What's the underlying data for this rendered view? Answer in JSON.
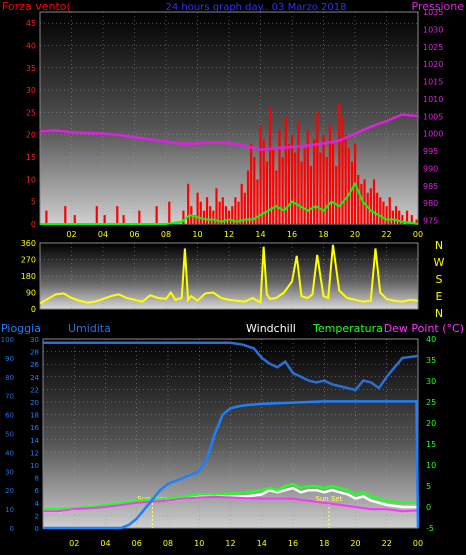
{
  "colors": {
    "wind": "#ff0000",
    "gust_line": "#00ff00",
    "pressure": "#e020e0",
    "title": "#3030ff",
    "direction": "#ffff00",
    "rain": "#1e7fff",
    "humidity": "#2a6fd8",
    "windchill": "#ffffff",
    "temperature": "#22ff22",
    "dewpoint": "#ff33ff",
    "sun": "#ffff66",
    "axis_text": "#ffff00"
  },
  "chart_data": [
    {
      "type": "bar",
      "title": "24 hours graph day.. 03 Marzo 2018",
      "left_label": "Forza vento(",
      "right_label": "Pressione",
      "x_ticks": [
        "02",
        "04",
        "06",
        "08",
        "10",
        "12",
        "14",
        "16",
        "18",
        "20",
        "22",
        "00"
      ],
      "x_range": [
        0,
        24
      ],
      "y_left": {
        "ticks": [
          "0",
          "5",
          "10",
          "15",
          "20",
          "25",
          "30",
          "35",
          "40",
          "45"
        ],
        "range": [
          0,
          47.5
        ]
      },
      "y_right": {
        "ticks": [
          "975",
          "980",
          "985",
          "990",
          "995",
          "1000",
          "1005",
          "1010",
          "1015",
          "1020",
          "1025",
          "1030",
          "1035"
        ],
        "range": [
          974,
          1035
        ]
      },
      "series": [
        {
          "key": "wind_speed",
          "x": [
            0.4,
            0.9,
            1.6,
            2.2,
            3.0,
            3.6,
            4.1,
            4.5,
            4.9,
            5.3,
            5.7,
            6.3,
            6.9,
            7.4,
            8.2,
            8.7,
            9.1,
            9.4,
            9.6,
            9.8,
            10.0,
            10.2,
            10.4,
            10.6,
            10.8,
            11.0,
            11.2,
            11.4,
            11.6,
            11.8,
            12.0,
            12.2,
            12.4,
            12.6,
            12.8,
            13.0,
            13.2,
            13.4,
            13.6,
            13.8,
            14.0,
            14.2,
            14.4,
            14.6,
            14.8,
            15.0,
            15.2,
            15.4,
            15.6,
            15.8,
            16.0,
            16.2,
            16.4,
            16.6,
            16.8,
            17.0,
            17.2,
            17.4,
            17.6,
            17.8,
            18.0,
            18.2,
            18.4,
            18.6,
            18.8,
            19.0,
            19.2,
            19.4,
            19.6,
            19.8,
            20.0,
            20.2,
            20.4,
            20.6,
            20.8,
            21.0,
            21.2,
            21.4,
            21.6,
            21.8,
            22.0,
            22.2,
            22.4,
            22.6,
            22.8,
            23.0,
            23.3,
            23.6,
            23.9
          ],
          "values": [
            3,
            0,
            4,
            2,
            0,
            4,
            2,
            0,
            4,
            2,
            0,
            3,
            0,
            4,
            5,
            0,
            3,
            9,
            4,
            2,
            7,
            5,
            3,
            6,
            4,
            3,
            8,
            5,
            6,
            4,
            3,
            4,
            6,
            5,
            9,
            7,
            12,
            18,
            15,
            10,
            22,
            19,
            14,
            26,
            17,
            12,
            21,
            15,
            24,
            18,
            20,
            16,
            23,
            14,
            17,
            21,
            13,
            19,
            25,
            16,
            20,
            15,
            22,
            18,
            13,
            27,
            24,
            20,
            17,
            14,
            18,
            11,
            9,
            10,
            7,
            8,
            10,
            7,
            6,
            5,
            4,
            6,
            3,
            4,
            3,
            2,
            3,
            2,
            1
          ]
        },
        {
          "key": "wind_gust_line",
          "x": [
            0,
            1,
            2,
            3,
            4,
            5,
            6,
            7,
            8,
            9,
            9.5,
            10,
            10.5,
            11,
            11.5,
            12,
            12.5,
            13,
            13.5,
            14,
            14.5,
            15,
            15.5,
            16,
            16.5,
            17,
            17.5,
            18,
            18.5,
            19,
            19.5,
            20,
            20.5,
            21,
            21.5,
            22,
            22.5,
            23,
            24
          ],
          "values": [
            0,
            0,
            0,
            0,
            0,
            0,
            0,
            0,
            0,
            0.5,
            2,
            1.5,
            1,
            1,
            0.5,
            1,
            0.5,
            1,
            1,
            2,
            3,
            4,
            3,
            5,
            4,
            3,
            4,
            3,
            5,
            4,
            6,
            9,
            5,
            3,
            2,
            1,
            1,
            0.5,
            0
          ]
        },
        {
          "key": "pressure",
          "x": [
            0,
            1,
            2,
            3,
            4,
            5,
            6,
            7,
            8,
            9,
            10,
            11,
            12,
            13,
            14,
            15,
            16,
            17,
            18,
            19,
            20,
            21,
            22,
            23,
            24
          ],
          "values": [
            1000.6,
            1000.9,
            1000.4,
            1000.2,
            1000.0,
            999.6,
            999.0,
            998.3,
            997.7,
            997.1,
            997.2,
            997.5,
            997.3,
            996.5,
            995.4,
            995.8,
            996.2,
            996.6,
            997.2,
            998.0,
            1000.0,
            1002.0,
            1003.6,
            1005.5,
            1005.0
          ]
        }
      ]
    },
    {
      "type": "line",
      "x_ticks": [
        "02",
        "04",
        "06",
        "08",
        "10",
        "12",
        "14",
        "16",
        "18",
        "20",
        "22",
        "00"
      ],
      "x_range": [
        0,
        24
      ],
      "y_left": {
        "ticks": [
          "0",
          "90",
          "180",
          "270",
          "360"
        ],
        "range": [
          0,
          360
        ]
      },
      "right_labels": [
        "N",
        "W",
        "S",
        "E",
        "N"
      ],
      "series": [
        {
          "key": "wind_direction",
          "x": [
            0,
            0.5,
            1,
            1.5,
            2,
            2.5,
            3,
            3.5,
            4,
            4.5,
            5,
            5.5,
            6,
            6.5,
            7,
            7.5,
            8,
            8.3,
            8.6,
            9,
            9.2,
            9.4,
            9.6,
            10,
            10.5,
            11,
            11.5,
            12,
            12.5,
            13,
            13.5,
            14,
            14.2,
            14.4,
            14.6,
            15,
            15.5,
            16,
            16.3,
            16.6,
            17,
            17.3,
            17.6,
            18,
            18.3,
            18.6,
            19,
            19.5,
            20,
            20.5,
            21,
            21.3,
            21.6,
            22,
            22.5,
            23,
            23.5,
            24
          ],
          "values": [
            30,
            55,
            80,
            85,
            60,
            45,
            35,
            40,
            55,
            70,
            80,
            60,
            50,
            40,
            75,
            60,
            55,
            90,
            50,
            60,
            330,
            50,
            70,
            45,
            85,
            90,
            60,
            50,
            45,
            40,
            60,
            35,
            340,
            80,
            55,
            60,
            90,
            150,
            290,
            70,
            60,
            80,
            295,
            70,
            60,
            350,
            100,
            60,
            50,
            40,
            45,
            330,
            90,
            55,
            45,
            40,
            50,
            45
          ]
        }
      ]
    },
    {
      "type": "line",
      "x_ticks": [
        "02",
        "04",
        "06",
        "08",
        "10",
        "12",
        "14",
        "16",
        "18",
        "20",
        "22",
        "00"
      ],
      "x_range": [
        0,
        24
      ],
      "labels": [
        "Pioggia",
        "Umidita",
        "Windchill",
        "Temperatura",
        "Dew Point (°C)"
      ],
      "y_rain": {
        "ticks": [
          "0",
          "2",
          "4",
          "6",
          "8",
          "10",
          "12",
          "14",
          "16",
          "18",
          "20",
          "22",
          "24",
          "26",
          "28",
          "30"
        ],
        "range": [
          0,
          30
        ]
      },
      "y_humidity": {
        "ticks": [
          "0",
          "10",
          "20",
          "30",
          "40",
          "50",
          "60",
          "70",
          "80",
          "90",
          "100"
        ],
        "range": [
          0,
          100
        ]
      },
      "y_temp": {
        "ticks": [
          "-5",
          "0",
          "5",
          "10",
          "15",
          "20",
          "25",
          "30",
          "35",
          "40"
        ],
        "range": [
          -5,
          40
        ]
      },
      "sun_rise": {
        "label": "Sun Rise",
        "x": 7.0
      },
      "sun_set": {
        "label": "Sun Set",
        "x": 18.3
      },
      "series": [
        {
          "key": "rain",
          "x": [
            0,
            1,
            2,
            3,
            4,
            5,
            5.5,
            6,
            6.5,
            7,
            7.5,
            8,
            8.5,
            9,
            9.5,
            10,
            10.5,
            11,
            11.5,
            12,
            12.5,
            13,
            14,
            15,
            16,
            17,
            18,
            19,
            20,
            21,
            22,
            23,
            23.9,
            24
          ],
          "values": [
            0,
            0,
            0,
            0,
            0,
            0,
            0.5,
            1.5,
            3,
            4.5,
            6,
            7,
            7.5,
            8,
            8.5,
            9,
            11,
            15,
            18,
            19,
            19.3,
            19.5,
            19.7,
            19.8,
            19.9,
            20.0,
            20.1,
            20.1,
            20.1,
            20.1,
            20.1,
            20.1,
            20.1,
            0
          ]
        },
        {
          "key": "humidity",
          "x": [
            0,
            2,
            4,
            6,
            8,
            10,
            12,
            12.8,
            13.5,
            14,
            14.5,
            15,
            15.5,
            16,
            16.5,
            17,
            17.5,
            18,
            18.5,
            19,
            19.5,
            20,
            20.5,
            21,
            21.5,
            22,
            22.5,
            23,
            24
          ],
          "values": [
            98,
            98,
            98,
            98,
            98,
            98,
            98,
            97,
            95,
            90,
            87,
            85,
            88,
            82,
            80,
            78,
            77,
            78,
            76,
            75,
            74,
            73,
            78,
            77,
            74,
            80,
            85,
            90,
            91
          ]
        },
        {
          "key": "windchill",
          "x": [
            0,
            1,
            2,
            3,
            4,
            5,
            6,
            7,
            8,
            9,
            10,
            11,
            12,
            13,
            14,
            14.5,
            15,
            15.5,
            16,
            16.5,
            17,
            17.5,
            18,
            18.5,
            19,
            19.5,
            20,
            20.5,
            21,
            22,
            23,
            24
          ],
          "values": [
            -1,
            -1,
            -0.5,
            0,
            0.5,
            1,
            1.5,
            1.5,
            1.5,
            2,
            2.5,
            2.5,
            2.5,
            2.5,
            3,
            4,
            3.5,
            4,
            4.5,
            3.5,
            4,
            4,
            3.5,
            4,
            3.5,
            3,
            2,
            2.5,
            1.5,
            0.5,
            0,
            0
          ]
        },
        {
          "key": "temperature",
          "x": [
            0,
            1,
            2,
            3,
            4,
            5,
            6,
            7,
            8,
            9,
            10,
            11,
            12,
            13,
            14,
            14.5,
            15,
            15.5,
            16,
            16.5,
            17,
            17.5,
            18,
            18.5,
            19,
            19.5,
            20,
            20.5,
            21,
            22,
            23,
            24
          ],
          "values": [
            -0.5,
            -0.5,
            -0.3,
            0,
            0.5,
            1,
            1.5,
            1.8,
            2,
            2.5,
            3,
            3,
            3.2,
            3.5,
            4,
            4.5,
            4,
            5,
            5.5,
            4.5,
            5,
            5,
            4.5,
            5,
            4.5,
            4,
            3,
            3.5,
            2.5,
            1.5,
            1,
            1
          ]
        },
        {
          "key": "dewpoint",
          "x": [
            0,
            1,
            2,
            3,
            4,
            5,
            6,
            7,
            8,
            9,
            10,
            11,
            12,
            13,
            14,
            15,
            16,
            17,
            18,
            19,
            20,
            21,
            22,
            23,
            24
          ],
          "values": [
            -1,
            -1,
            -0.5,
            -0.3,
            0,
            0.5,
            1,
            1.3,
            1.5,
            2,
            2.3,
            2.4,
            2.3,
            2.1,
            2,
            2,
            2,
            1.5,
            1,
            0.5,
            0,
            -0.5,
            -0.5,
            -1,
            -0.8
          ]
        }
      ]
    }
  ]
}
